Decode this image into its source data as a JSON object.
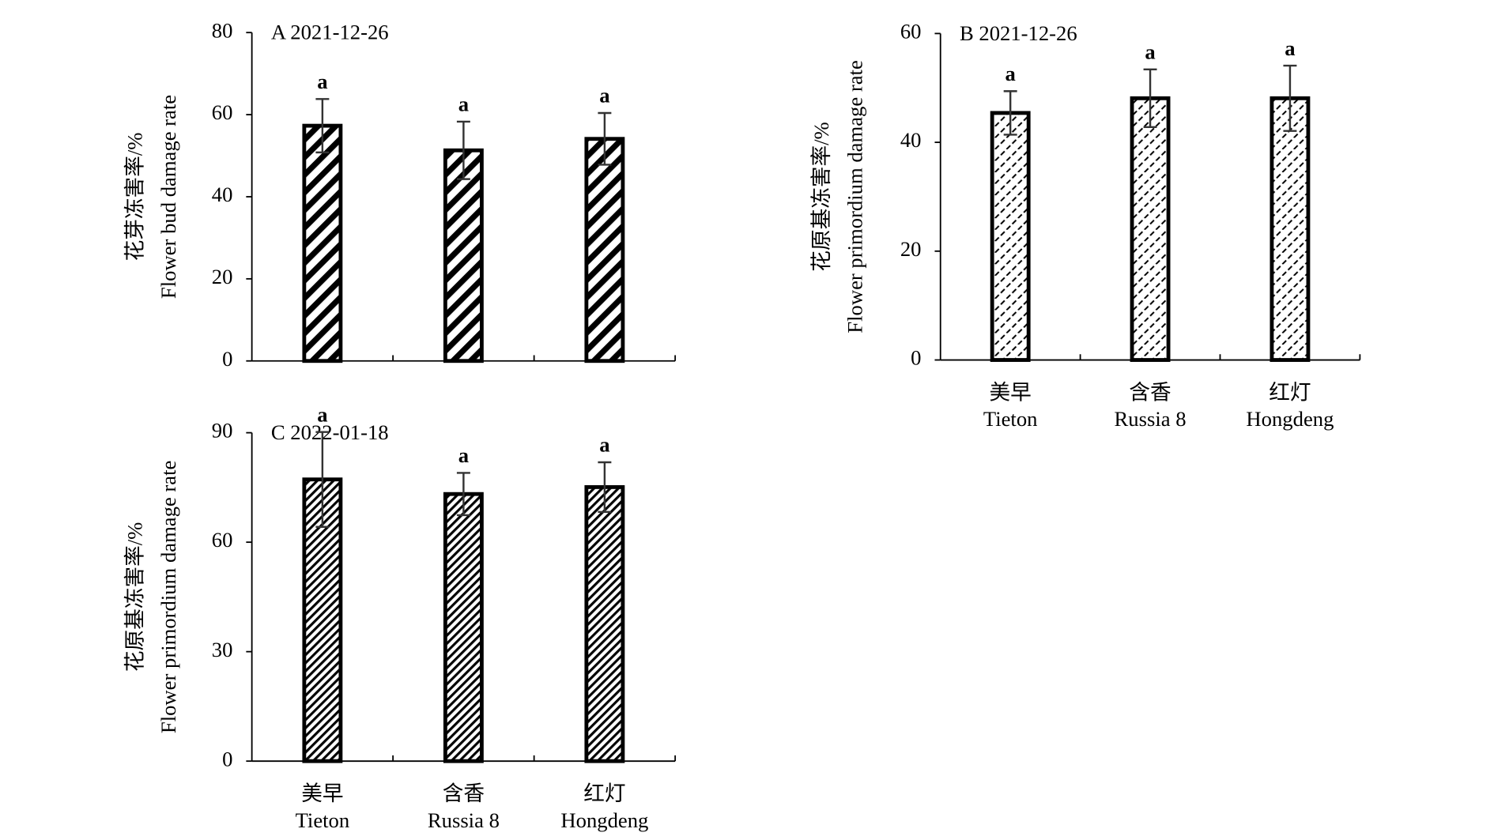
{
  "chart_data": [
    {
      "type": "bar",
      "title": "A  2021-12-26",
      "ylabel": [
        "花芽冻害率/%",
        "Flower bud damage rate"
      ],
      "categories": [
        null,
        null,
        null
      ],
      "categories_en": [
        null,
        null,
        null
      ],
      "values": [
        57.3,
        51.3,
        54.1
      ],
      "errors": [
        6.5,
        7.0,
        6.3
      ],
      "annotations": [
        "a",
        "a",
        "a"
      ],
      "ylim": [
        0,
        80
      ],
      "yticks": [
        0,
        20,
        40,
        60,
        80
      ],
      "color": "#000000",
      "pattern": "wide-stripes"
    },
    {
      "type": "bar",
      "title": "B  2021-12-26",
      "ylabel": [
        "花原基冻害率/%",
        "Flower primordium damage rate"
      ],
      "categories": [
        "美早",
        "含香",
        "红灯"
      ],
      "categories_en": [
        "Tieton",
        "Russia 8",
        "Hongdeng"
      ],
      "values": [
        45.4,
        48.1,
        48.1
      ],
      "errors": [
        4.0,
        5.3,
        6.0
      ],
      "annotations": [
        "a",
        "a",
        "a"
      ],
      "ylim": [
        0,
        60
      ],
      "yticks": [
        0,
        20,
        40,
        60
      ],
      "color": "#000000",
      "pattern": "dashes"
    },
    {
      "type": "bar",
      "title": "C  2022-01-18",
      "ylabel": [
        "花原基冻害率/%",
        "Flower primordium damage rate"
      ],
      "categories": [
        "美早",
        "含香",
        "红灯"
      ],
      "categories_en": [
        "Tieton",
        "Russia 8",
        "Hongdeng"
      ],
      "values": [
        77.2,
        73.2,
        75.1
      ],
      "errors": [
        13.0,
        5.8,
        6.8
      ],
      "annotations": [
        "a",
        "a",
        "a"
      ],
      "ylim": [
        0,
        90
      ],
      "yticks": [
        0,
        30,
        60,
        90
      ],
      "color": "#000000",
      "pattern": "fine-stripes"
    }
  ]
}
